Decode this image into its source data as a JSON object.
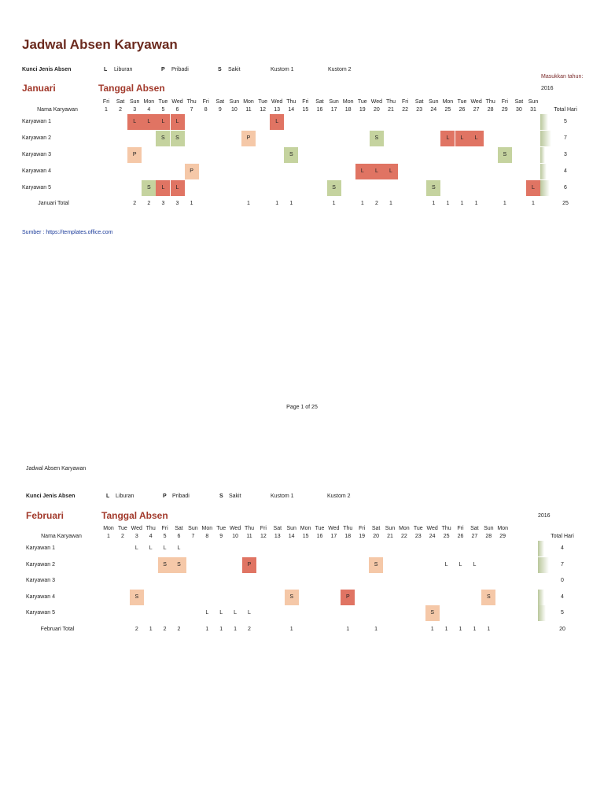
{
  "title": "Jadwal Absen Karyawan",
  "source": "Sumber : https://templates.office.com",
  "page_footer": "Page 1 of 25",
  "page2_header": "Jadwal Absen Karyawan",
  "year_prompt": "Masukkan tahun:",
  "legend": {
    "label": "Kunci Jenis Absen",
    "items": [
      {
        "code": "L",
        "label": "Liburan"
      },
      {
        "code": "P",
        "label": "Pribadi"
      },
      {
        "code": "S",
        "label": "Sakit"
      }
    ],
    "custom1": "Kustom 1",
    "custom2": "Kustom 2"
  },
  "months": [
    {
      "name": "Januari",
      "subtitle": "Tanggal Absen",
      "year": "2016",
      "name_header": "Nama Karyawan",
      "total_header": "Total Hari",
      "total_label": "Januari Total",
      "grand_total": "25",
      "max_total": 7,
      "code_colors": {
        "L": "#e07463",
        "P": "#f5c8a8",
        "S": "#c5d39f"
      },
      "weekdays": [
        "Fri",
        "Sat",
        "Sun",
        "Mon",
        "Tue",
        "Wed",
        "Thu",
        "Fri",
        "Sat",
        "Sun",
        "Mon",
        "Tue",
        "Wed",
        "Thu",
        "Fri",
        "Sat",
        "Sun",
        "Mon",
        "Tue",
        "Wed",
        "Thu",
        "Fri",
        "Sat",
        "Sun",
        "Mon",
        "Tue",
        "Wed",
        "Thu",
        "Fri",
        "Sat",
        "Sun"
      ],
      "employees": [
        {
          "name": "Karyawan 1",
          "total": "5",
          "absences": {
            "3": "L",
            "4": "L",
            "5": "L",
            "6": "L",
            "13": "L"
          }
        },
        {
          "name": "Karyawan 2",
          "total": "7",
          "absences": {
            "5": "S",
            "6": "S",
            "11": "P",
            "20": "S",
            "25": "L",
            "26": "L",
            "27": "L"
          }
        },
        {
          "name": "Karyawan 3",
          "total": "3",
          "absences": {
            "3": "P",
            "14": "S",
            "29": "S"
          }
        },
        {
          "name": "Karyawan 4",
          "total": "4",
          "absences": {
            "7": "P",
            "19": "L",
            "20": "L",
            "21": "L"
          }
        },
        {
          "name": "Karyawan 5",
          "total": "6",
          "absences": {
            "4": "S",
            "5": "L",
            "6": "L",
            "17": "S",
            "24": "S",
            "31": "L"
          }
        }
      ],
      "day_totals": {
        "3": "2",
        "4": "2",
        "5": "3",
        "6": "3",
        "7": "1",
        "11": "1",
        "13": "1",
        "14": "1",
        "17": "1",
        "19": "1",
        "20": "2",
        "21": "1",
        "24": "1",
        "25": "1",
        "26": "1",
        "27": "1",
        "29": "1",
        "31": "1"
      }
    },
    {
      "name": "Februari",
      "subtitle": "Tanggal Absen",
      "year": "2016",
      "name_header": "Nama Karyawan",
      "total_header": "Total Hari",
      "total_label": "Februari Total",
      "grand_total": "20",
      "max_total": 7,
      "code_colors": {
        "L": "",
        "P": "#e07463",
        "S": "#f5c8a8"
      },
      "weekdays": [
        "Mon",
        "Tue",
        "Wed",
        "Thu",
        "Fri",
        "Sat",
        "Sun",
        "Mon",
        "Tue",
        "Wed",
        "Thu",
        "Fri",
        "Sat",
        "Sun",
        "Mon",
        "Tue",
        "Wed",
        "Thu",
        "Fri",
        "Sat",
        "Sun",
        "Mon",
        "Tue",
        "Wed",
        "Thu",
        "Fri",
        "Sat",
        "Sun",
        "Mon"
      ],
      "employees": [
        {
          "name": "Karyawan 1",
          "total": "4",
          "absences": {
            "3": "L",
            "4": "L",
            "5": "L",
            "6": "L"
          }
        },
        {
          "name": "Karyawan 2",
          "total": "7",
          "absences": {
            "5": "S",
            "6": "S",
            "11": "P",
            "20": "S",
            "25": "L",
            "26": "L",
            "27": "L"
          }
        },
        {
          "name": "Karyawan 3",
          "total": "0",
          "absences": {}
        },
        {
          "name": "Karyawan 4",
          "total": "4",
          "absences": {
            "3": "S",
            "14": "S",
            "18": "P",
            "28": "S"
          }
        },
        {
          "name": "Karyawan 5",
          "total": "5",
          "absences": {
            "8": "L",
            "9": "L",
            "10": "L",
            "11": "L",
            "24": "S"
          }
        }
      ],
      "day_totals": {
        "3": "2",
        "4": "1",
        "5": "2",
        "6": "2",
        "8": "1",
        "9": "1",
        "10": "1",
        "11": "2",
        "14": "1",
        "18": "1",
        "20": "1",
        "24": "1",
        "25": "1",
        "26": "1",
        "27": "1",
        "28": "1"
      }
    }
  ]
}
